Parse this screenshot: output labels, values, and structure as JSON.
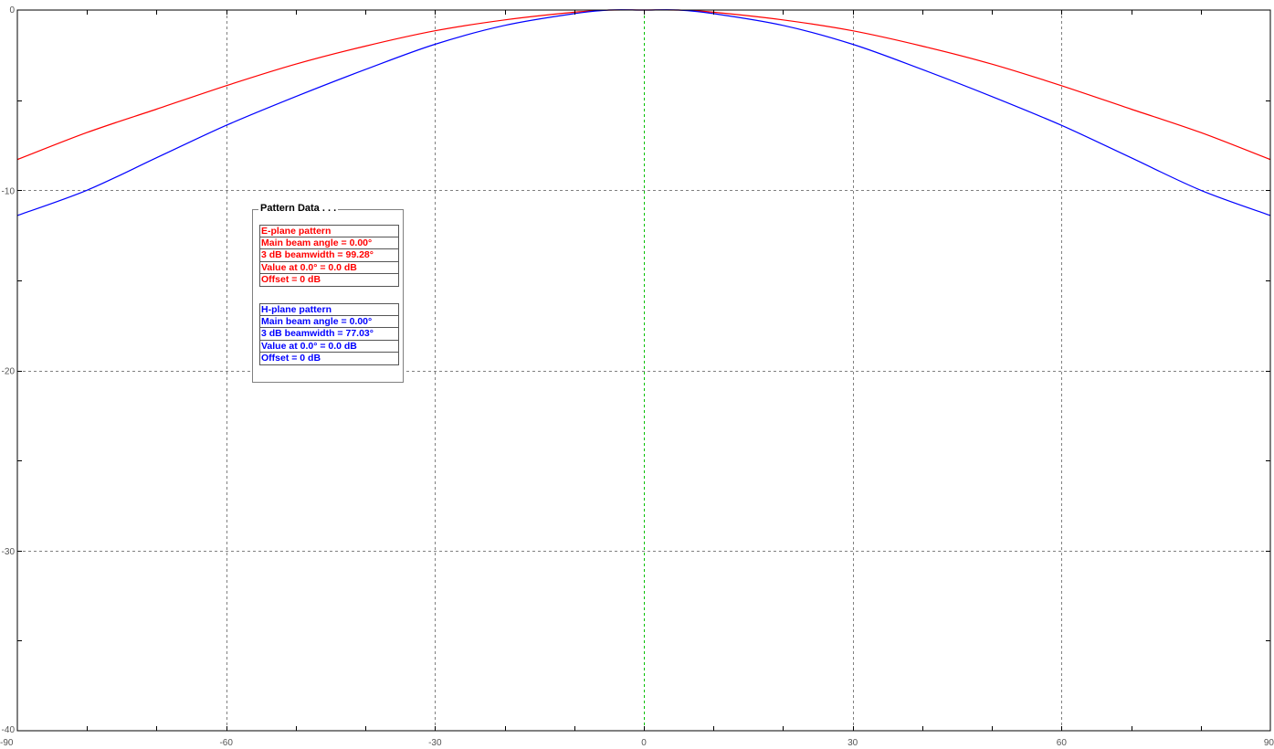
{
  "chart_data": {
    "type": "line",
    "title": "",
    "xlabel": "",
    "ylabel": "",
    "xlim": [
      -90,
      90
    ],
    "ylim": [
      -40,
      0
    ],
    "x_ticks": [
      "-90",
      "-60",
      "-30",
      "0",
      "30",
      "60",
      "90"
    ],
    "y_ticks": [
      "0",
      "-10",
      "-20",
      "-30",
      "-40"
    ],
    "grid": true,
    "series": [
      {
        "color": "#ff0000",
        "x": [
          -90,
          -80,
          -70,
          -60,
          -50,
          -40,
          -30,
          -20,
          -10,
          -5,
          0,
          5,
          10,
          20,
          30,
          40,
          50,
          60,
          70,
          80,
          90
        ],
        "y": [
          -8.3,
          -6.8,
          -5.5,
          -4.2,
          -3.0,
          -2.0,
          -1.15,
          -0.55,
          -0.12,
          0,
          0,
          0,
          -0.12,
          -0.55,
          -1.15,
          -2.0,
          -3.0,
          -4.2,
          -5.5,
          -6.8,
          -8.3
        ]
      },
      {
        "color": "#0000ff",
        "x": [
          -90,
          -80,
          -70,
          -60,
          -50,
          -40,
          -30,
          -20,
          -10,
          -5,
          0,
          5,
          10,
          20,
          30,
          40,
          50,
          60,
          70,
          80,
          90
        ],
        "y": [
          -11.4,
          -10.0,
          -8.2,
          -6.4,
          -4.8,
          -3.3,
          -1.9,
          -0.85,
          -0.2,
          0,
          0,
          0,
          -0.2,
          -0.85,
          -1.9,
          -3.3,
          -4.8,
          -6.4,
          -8.2,
          -10.0,
          -11.4
        ]
      }
    ]
  },
  "legend": {
    "title": "Pattern Data . . .",
    "e_plane": {
      "color": "#ff0000",
      "rows": [
        "E-plane pattern",
        "Main beam angle = 0.00°",
        "3 dB beamwidth = 99.28°",
        "Value at 0.0° = 0.0 dB",
        "Offset = 0 dB"
      ]
    },
    "h_plane": {
      "color": "#0000ff",
      "rows": [
        "H-plane pattern",
        "Main beam angle = 0.00°",
        "3 dB beamwidth = 77.03°",
        "Value at 0.0° = 0.0 dB",
        "Offset = 0 dB"
      ]
    }
  }
}
